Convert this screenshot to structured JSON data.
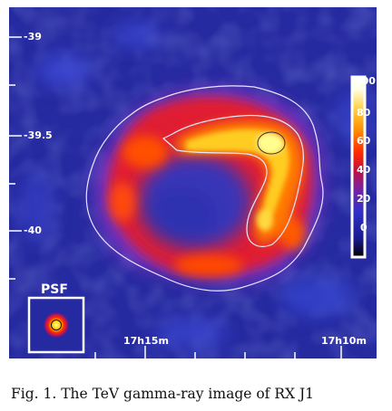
{
  "figure": {
    "dec_ticks": [
      "-39",
      "-39.5",
      "-40"
    ],
    "ra_ticks": [
      "17h15m",
      "17h10m"
    ],
    "colorbar_ticks": [
      "100",
      "80",
      "60",
      "40",
      "20",
      "0"
    ],
    "colorbar_colors": [
      "#000000",
      "#1a1a8c",
      "#3030c8",
      "#7a20a0",
      "#c01040",
      "#ff2a00",
      "#ff8a00",
      "#ffd040",
      "#ffffe0",
      "#ffffff"
    ],
    "psf_label": "PSF",
    "background_color": "#262aa0",
    "contour_color": "#e8e8ff"
  },
  "caption": {
    "text": "Fig. 1.   The TeV gamma-ray image of RX J1"
  }
}
